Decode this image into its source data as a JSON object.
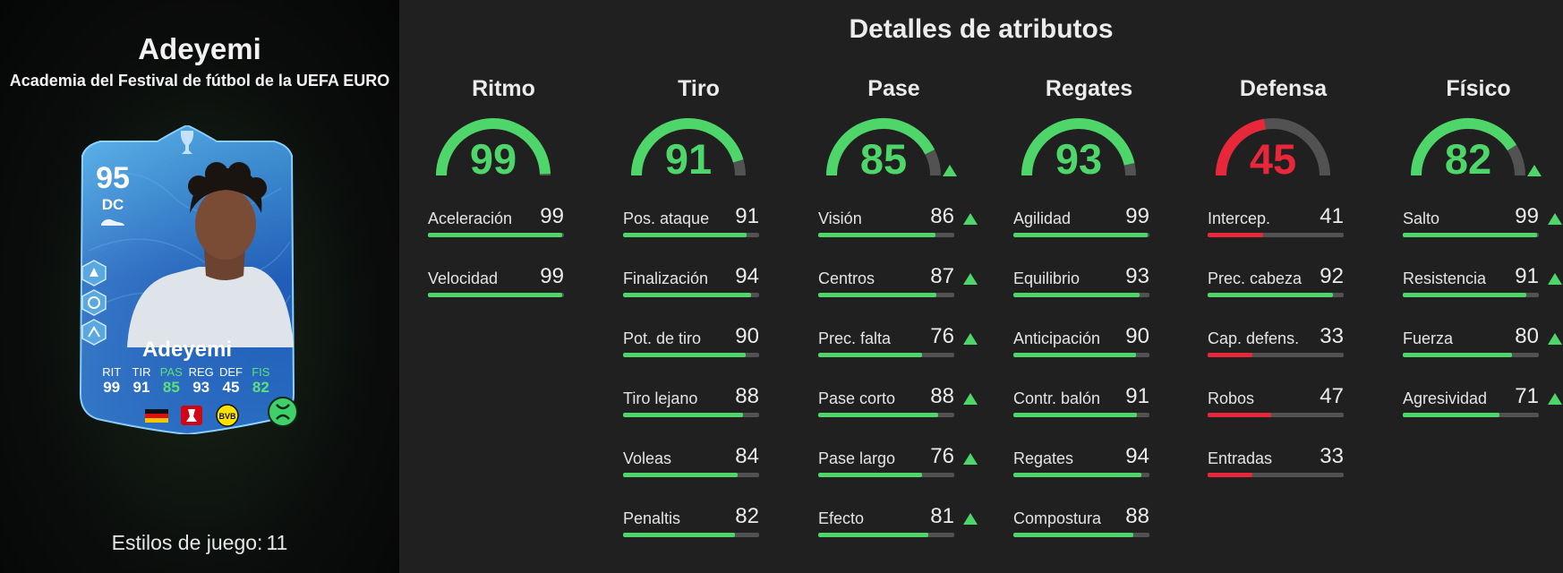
{
  "player": {
    "name": "Adeyemi",
    "edition": "Academia del Festival de fútbol de la UEFA EURO",
    "playstyles_label": "Estilos de juego:",
    "playstyles_count": "11"
  },
  "card": {
    "rating": "95",
    "position": "DC",
    "name": "Adeyemi",
    "stats": [
      {
        "label": "RIT",
        "value": "99",
        "upgraded": false
      },
      {
        "label": "TIR",
        "value": "91",
        "upgraded": false
      },
      {
        "label": "PAS",
        "value": "85",
        "upgraded": true
      },
      {
        "label": "REG",
        "value": "93",
        "upgraded": false
      },
      {
        "label": "DEF",
        "value": "45",
        "upgraded": false
      },
      {
        "label": "FIS",
        "value": "82",
        "upgraded": true
      }
    ],
    "icons": [
      "trophy-icon",
      "boot-icon",
      "playstyle-icon",
      "germany-flag-icon",
      "bundesliga-logo-icon",
      "bvb-logo-icon",
      "evolution-icon"
    ]
  },
  "details_title": "Detalles de atributos",
  "colors": {
    "good": "#4ed66b",
    "bad": "#e8283a",
    "track": "#525252"
  },
  "categories": [
    {
      "name": "Ritmo",
      "value": 99,
      "upgraded": false,
      "attributes": [
        {
          "label": "Aceleración",
          "value": 99,
          "upgraded": false
        },
        {
          "label": "Velocidad",
          "value": 99,
          "upgraded": false
        }
      ]
    },
    {
      "name": "Tiro",
      "value": 91,
      "upgraded": false,
      "attributes": [
        {
          "label": "Pos. ataque",
          "value": 91,
          "upgraded": false
        },
        {
          "label": "Finalización",
          "value": 94,
          "upgraded": false
        },
        {
          "label": "Pot. de tiro",
          "value": 90,
          "upgraded": false
        },
        {
          "label": "Tiro lejano",
          "value": 88,
          "upgraded": false
        },
        {
          "label": "Voleas",
          "value": 84,
          "upgraded": false
        },
        {
          "label": "Penaltis",
          "value": 82,
          "upgraded": false
        }
      ]
    },
    {
      "name": "Pase",
      "value": 85,
      "upgraded": true,
      "attributes": [
        {
          "label": "Visión",
          "value": 86,
          "upgraded": true
        },
        {
          "label": "Centros",
          "value": 87,
          "upgraded": true
        },
        {
          "label": "Prec. falta",
          "value": 76,
          "upgraded": true
        },
        {
          "label": "Pase corto",
          "value": 88,
          "upgraded": true
        },
        {
          "label": "Pase largo",
          "value": 76,
          "upgraded": true
        },
        {
          "label": "Efecto",
          "value": 81,
          "upgraded": true
        }
      ]
    },
    {
      "name": "Regates",
      "value": 93,
      "upgraded": false,
      "attributes": [
        {
          "label": "Agilidad",
          "value": 99,
          "upgraded": false
        },
        {
          "label": "Equilibrio",
          "value": 93,
          "upgraded": false
        },
        {
          "label": "Anticipación",
          "value": 90,
          "upgraded": false
        },
        {
          "label": "Contr. balón",
          "value": 91,
          "upgraded": false
        },
        {
          "label": "Regates",
          "value": 94,
          "upgraded": false
        },
        {
          "label": "Compostura",
          "value": 88,
          "upgraded": false
        }
      ]
    },
    {
      "name": "Defensa",
      "value": 45,
      "upgraded": false,
      "attributes": [
        {
          "label": "Intercep.",
          "value": 41,
          "upgraded": false
        },
        {
          "label": "Prec. cabeza",
          "value": 92,
          "upgraded": false
        },
        {
          "label": "Cap. defens.",
          "value": 33,
          "upgraded": false
        },
        {
          "label": "Robos",
          "value": 47,
          "upgraded": false
        },
        {
          "label": "Entradas",
          "value": 33,
          "upgraded": false
        }
      ]
    },
    {
      "name": "Físico",
      "value": 82,
      "upgraded": true,
      "attributes": [
        {
          "label": "Salto",
          "value": 99,
          "upgraded": true
        },
        {
          "label": "Resistencia",
          "value": 91,
          "upgraded": true
        },
        {
          "label": "Fuerza",
          "value": 80,
          "upgraded": true
        },
        {
          "label": "Agresividad",
          "value": 71,
          "upgraded": true
        }
      ]
    }
  ]
}
